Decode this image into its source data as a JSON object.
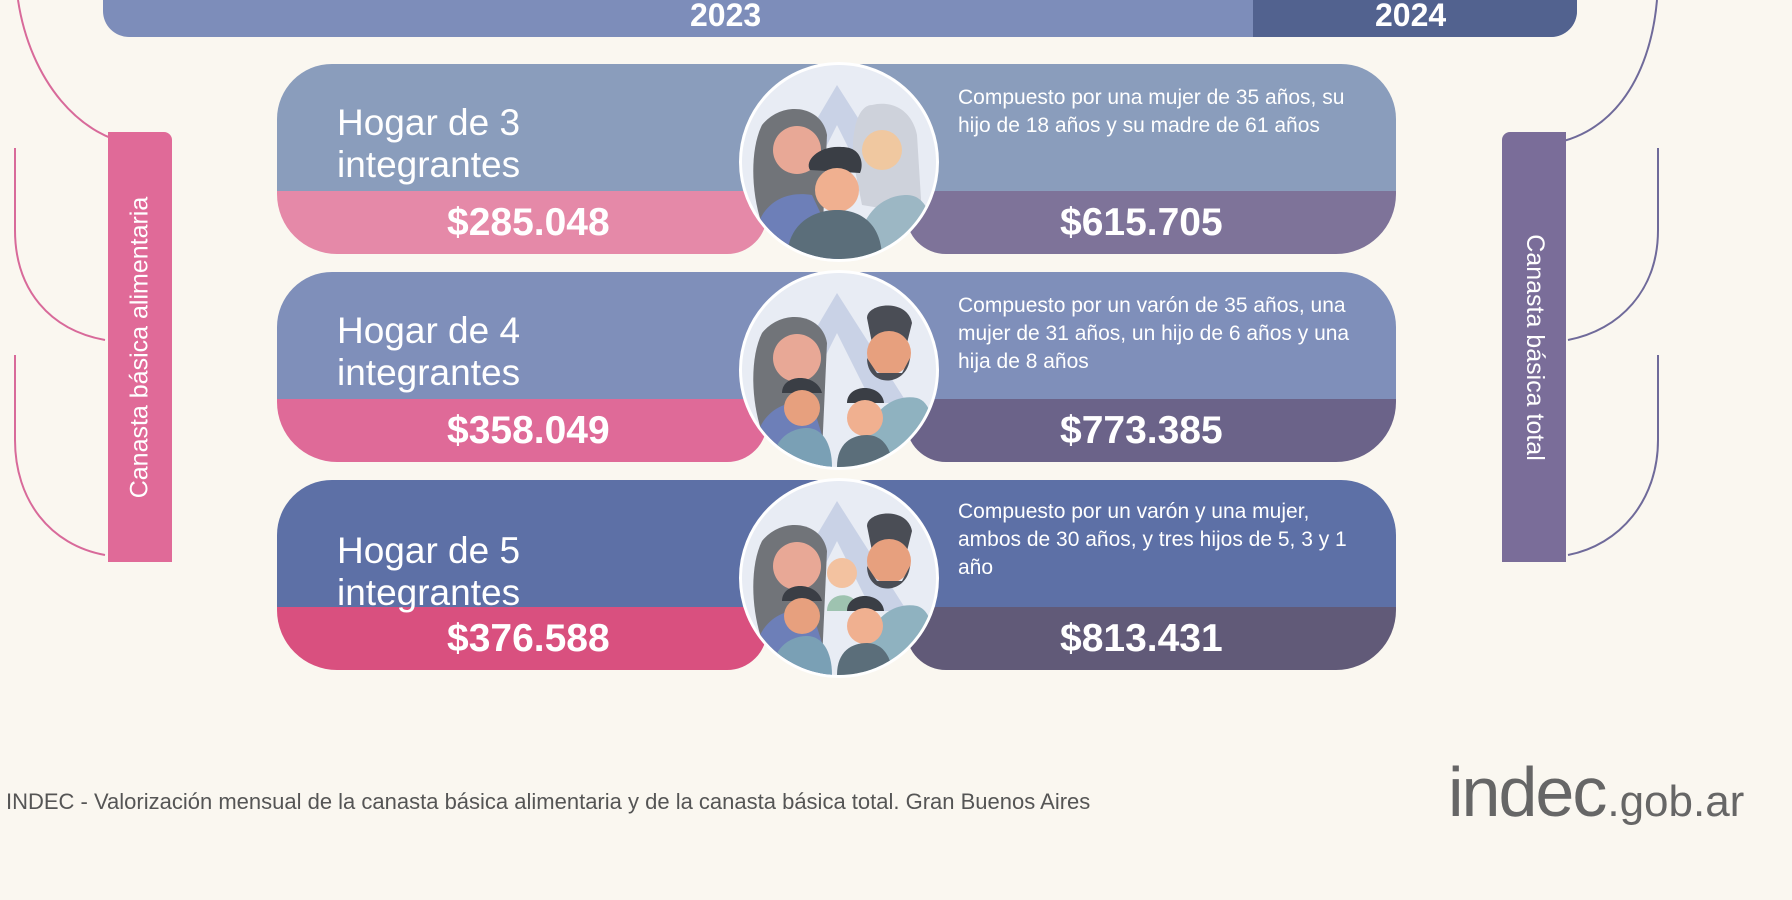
{
  "years": {
    "left": "2023",
    "right": "2024"
  },
  "sidebars": {
    "left": "Canasta básica alimentaria",
    "right": "Canasta básica total"
  },
  "cards": [
    {
      "title": "Hogar de 3 integrantes",
      "description": "Compuesto por una mujer de 35 años, su hijo de 18 años y su madre de 61 años",
      "cba": "$285.048",
      "cbt": "$615.705"
    },
    {
      "title": "Hogar de 4 integrantes",
      "description": "Compuesto por un varón de 35 años, una mujer de 31 años, un hijo de 6 años y una hija de 8 años",
      "cba": "$358.049",
      "cbt": "$773.385"
    },
    {
      "title": "Hogar de 5 integrantes",
      "description": "Compuesto por un varón y una mujer, ambos de 30 años, y tres hijos de 5, 3 y 1 año",
      "cba": "$376.588",
      "cbt": "$813.431"
    }
  ],
  "footer": "INDEC - Valorización mensual de la canasta básica alimentaria y de la canasta básica total. Gran Buenos Aires",
  "logo": {
    "main": "indec",
    "suffix": ".gob.ar"
  },
  "colors": {
    "background": "#faf7f0",
    "cba_pink": "#e06a98",
    "cbt_purple": "#7a6d99",
    "year_2023": "#7d8dba",
    "year_2024": "#52628f"
  }
}
